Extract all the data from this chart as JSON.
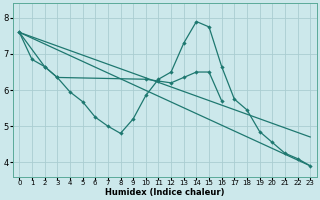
{
  "xlabel": "Humidex (Indice chaleur)",
  "background_color": "#cce8eb",
  "grid_color": "#aacdd1",
  "line_color": "#1e7870",
  "ylim": [
    3.6,
    8.4
  ],
  "xlim": [
    -0.5,
    23.5
  ],
  "yticks": [
    4,
    5,
    6,
    7,
    8
  ],
  "xticks": [
    0,
    1,
    2,
    3,
    4,
    5,
    6,
    7,
    8,
    9,
    10,
    11,
    12,
    13,
    14,
    15,
    16,
    17,
    18,
    19,
    20,
    21,
    22,
    23
  ],
  "line1_x": [
    0,
    1,
    2,
    3,
    4,
    5,
    6,
    7,
    8,
    9,
    10,
    11,
    12,
    13,
    14,
    15,
    16,
    17,
    18,
    19,
    20,
    21,
    22,
    23
  ],
  "line1_y": [
    7.6,
    6.85,
    6.65,
    6.35,
    5.95,
    5.68,
    5.25,
    5.0,
    4.8,
    5.2,
    5.85,
    6.3,
    6.5,
    7.3,
    7.9,
    7.75,
    6.65,
    5.75,
    5.45,
    4.85,
    4.55,
    4.25,
    4.1,
    3.9
  ],
  "line2_x": [
    0,
    2,
    3,
    10,
    11,
    12,
    13,
    14,
    15,
    16
  ],
  "line2_y": [
    7.6,
    6.65,
    6.35,
    6.3,
    6.25,
    6.2,
    6.35,
    6.5,
    6.5,
    5.7
  ],
  "line3_x": [
    0,
    23
  ],
  "line3_y": [
    7.6,
    3.9
  ],
  "line4_x": [
    0,
    23
  ],
  "line4_y": [
    7.6,
    4.7
  ]
}
